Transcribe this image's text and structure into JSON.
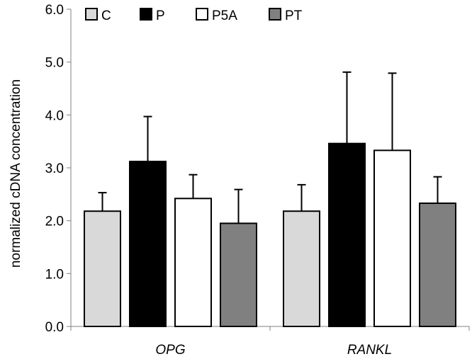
{
  "chart_data": {
    "type": "bar",
    "title": "",
    "xlabel": "",
    "ylabel": "normalized cDNA concentration",
    "ylim": [
      0,
      6
    ],
    "yticks": [
      "0.0",
      "1.0",
      "2.0",
      "3.0",
      "4.0",
      "5.0",
      "6.0"
    ],
    "categories": [
      "OPG",
      "RANKL"
    ],
    "legend_position": "top",
    "series": [
      {
        "name": "C",
        "color": "#d9d9d9",
        "values": [
          2.18,
          2.18
        ],
        "errors": [
          0.35,
          0.5
        ]
      },
      {
        "name": "P",
        "color": "#000000",
        "values": [
          3.12,
          3.46
        ],
        "errors": [
          0.85,
          1.35
        ]
      },
      {
        "name": "P5A",
        "color": "#ffffff",
        "values": [
          2.42,
          3.33
        ],
        "errors": [
          0.45,
          1.46
        ]
      },
      {
        "name": "PT",
        "color": "#808080",
        "values": [
          1.95,
          2.33
        ],
        "errors": [
          0.64,
          0.5
        ]
      }
    ]
  }
}
